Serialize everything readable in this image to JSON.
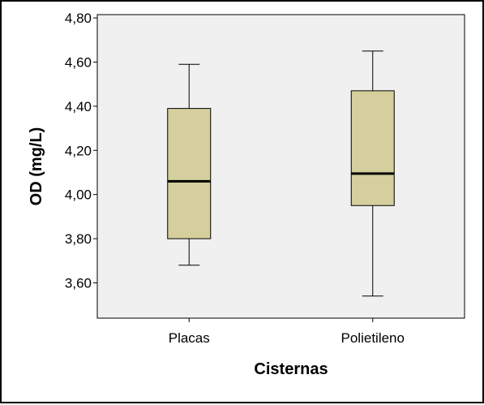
{
  "chart_data": {
    "type": "boxplot",
    "xlabel": "Cisternas",
    "ylabel": "OD (mg/L)",
    "categories": [
      "Placas",
      "Polietileno"
    ],
    "boxes": [
      {
        "category": "Placas",
        "min": 3.68,
        "q1": 3.8,
        "median": 4.06,
        "q3": 4.39,
        "max": 4.59
      },
      {
        "category": "Polietileno",
        "min": 3.54,
        "q1": 3.95,
        "median": 4.095,
        "q3": 4.47,
        "max": 4.65
      }
    ],
    "ylim": [
      3.44,
      4.815
    ],
    "yticks": [
      3.6,
      3.8,
      4.0,
      4.2,
      4.4,
      4.6,
      4.8
    ],
    "ytick_labels": [
      "3,60",
      "3,80",
      "4,00",
      "4,20",
      "4,40",
      "4,60",
      "4,80"
    ],
    "grid": false,
    "colors": {
      "box_fill": "#d4cf9c",
      "plot_background": "#f0f0f0",
      "stroke": "#000000"
    }
  }
}
